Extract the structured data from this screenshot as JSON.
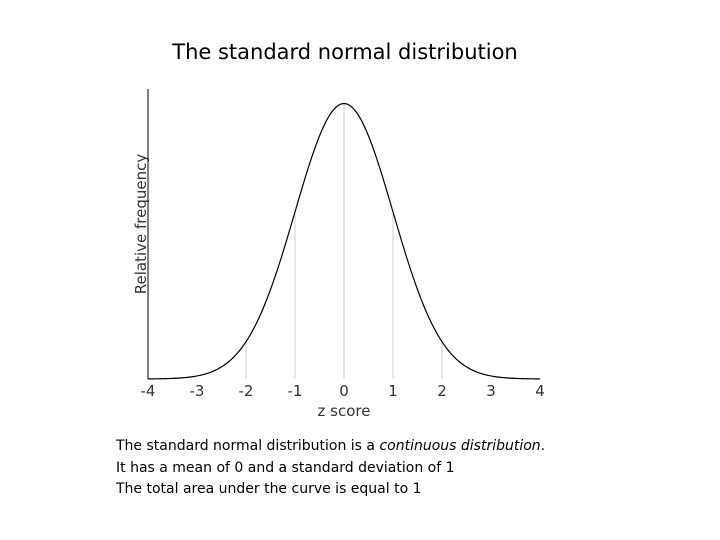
{
  "chart_data": {
    "type": "line",
    "title": "The standard normal distribution",
    "xlabel": "z score",
    "ylabel": "Relative frequency",
    "xlim": [
      -4,
      4
    ],
    "ylim": [
      0,
      0.42
    ],
    "x_ticks": [
      "-4",
      "-3",
      "-2",
      "-1",
      "0",
      "1",
      "2",
      "3",
      "4"
    ],
    "gridlines_x": [
      -2,
      -1,
      0,
      1,
      2
    ],
    "series": [
      {
        "x": [
          -4,
          -3.5,
          -3,
          -2.5,
          -2,
          -1.5,
          -1,
          -0.5,
          0,
          0.5,
          1,
          1.5,
          2,
          2.5,
          3,
          3.5,
          4
        ],
        "values": [
          0.0001,
          0.0009,
          0.0044,
          0.0175,
          0.054,
          0.1295,
          0.242,
          0.3521,
          0.3989,
          0.3521,
          0.242,
          0.1295,
          0.054,
          0.0175,
          0.0044,
          0.0009,
          0.0001
        ]
      }
    ],
    "grid": true,
    "line_color": "#000000",
    "gridline_color": "#cccccc"
  },
  "notes": {
    "line1_prefix": "The standard normal distribution is a ",
    "line1_emphasis": "continuous distribution",
    "line1_suffix": ".",
    "line2": "It has a mean of 0 and a standard deviation of 1",
    "line3": "The total area under the curve is equal to 1"
  }
}
